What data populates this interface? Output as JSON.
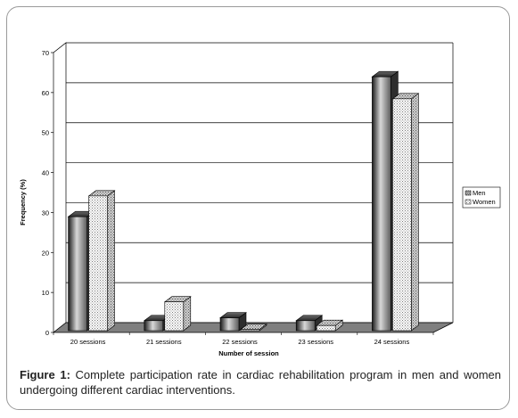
{
  "chart_data": {
    "type": "bar",
    "categories": [
      "20 sessions",
      "21 sessions",
      "22 sessions",
      "23 sessions",
      "24 sessions"
    ],
    "series": [
      {
        "name": "Men",
        "values": [
          28.5,
          2.5,
          3.2,
          2.5,
          63.5
        ],
        "color": "#4a4a4a"
      },
      {
        "name": "Women",
        "values": [
          33.7,
          7.2,
          0.3,
          1.3,
          58.0
        ],
        "color": "#e6e6e6"
      }
    ],
    "xlabel": "Number of session",
    "ylabel": "Frequency (%)",
    "ylim": [
      0,
      70
    ],
    "yticks": [
      "0",
      "10",
      "20",
      "30",
      "40",
      "50",
      "60",
      "70"
    ],
    "grid": true,
    "legend_position": "right"
  },
  "caption": {
    "label": "Figure 1:",
    "text": " Complete participation rate in cardiac rehabilitation program in men and women undergoing different cardiac interventions."
  }
}
